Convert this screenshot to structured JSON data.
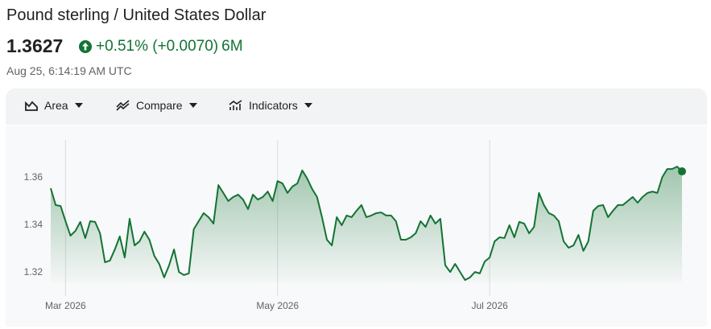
{
  "header": {
    "title": "Pound sterling / United States Dollar",
    "price": "1.3627",
    "change": "+0.51% (+0.0070)",
    "period": "6M",
    "timestamp": "Aug 25, 6:14:19 AM UTC"
  },
  "toolbar": {
    "items": [
      "Area",
      "Compare",
      "Indicators"
    ]
  },
  "chart_data": {
    "type": "area",
    "color": "#137333",
    "categories": [
      null,
      null,
      null,
      "Mar 2026",
      null,
      null,
      null,
      null,
      null,
      null,
      null,
      null,
      null,
      null,
      null,
      null,
      null,
      null,
      null,
      null,
      null,
      null,
      null,
      null,
      null,
      null,
      null,
      null,
      null,
      null,
      null,
      null,
      null,
      null,
      null,
      null,
      null,
      null,
      null,
      null,
      null,
      null,
      null,
      null,
      null,
      null,
      "May 2026",
      null,
      null,
      null,
      null,
      null,
      null,
      null,
      null,
      null,
      null,
      null,
      null,
      null,
      null,
      null,
      null,
      null,
      null,
      null,
      null,
      null,
      null,
      null,
      null,
      null,
      null,
      null,
      null,
      null,
      null,
      null,
      null,
      null,
      null,
      null,
      null,
      null,
      null,
      null,
      null,
      null,
      null,
      "Jul 2026",
      null,
      null,
      null,
      null,
      null,
      null,
      null,
      null,
      null,
      null,
      null,
      null,
      null,
      null,
      null,
      null,
      null,
      null,
      null,
      null,
      null,
      null,
      null,
      null,
      null,
      null,
      null,
      null,
      null,
      null,
      null,
      null,
      null,
      null,
      null,
      null,
      null,
      null,
      null
    ],
    "values": [
      1.3556,
      1.3485,
      1.3481,
      1.3417,
      1.3356,
      1.3376,
      1.3414,
      1.3346,
      1.3417,
      1.3414,
      1.3366,
      1.3244,
      1.3251,
      1.3298,
      1.3353,
      1.3264,
      1.3427,
      1.3315,
      1.3332,
      1.3373,
      1.3339,
      1.3271,
      1.3237,
      1.318,
      1.3231,
      1.3298,
      1.3203,
      1.319,
      1.3197,
      1.3383,
      1.3417,
      1.3451,
      1.3434,
      1.3407,
      1.3569,
      1.3536,
      1.3502,
      1.3519,
      1.3529,
      1.3508,
      1.3468,
      1.3529,
      1.3508,
      1.3519,
      1.3542,
      1.3502,
      1.3586,
      1.3576,
      1.3536,
      1.3563,
      1.3576,
      1.3631,
      1.3597,
      1.3553,
      1.3519,
      1.3434,
      1.3339,
      1.3315,
      1.3434,
      1.34,
      1.3441,
      1.3434,
      1.3461,
      1.3485,
      1.3434,
      1.3441,
      1.3451,
      1.3454,
      1.3441,
      1.3441,
      1.3417,
      1.3339,
      1.3339,
      1.3349,
      1.3366,
      1.3417,
      1.3393,
      1.3441,
      1.3407,
      1.3427,
      1.3231,
      1.3203,
      1.3237,
      1.3203,
      1.3169,
      1.318,
      1.3203,
      1.3197,
      1.3247,
      1.3264,
      1.3332,
      1.3349,
      1.3346,
      1.34,
      1.3349,
      1.3414,
      1.3407,
      1.3366,
      1.3393,
      1.3536,
      1.3485,
      1.3451,
      1.3441,
      1.3417,
      1.3332,
      1.3305,
      1.3315,
      1.3359,
      1.3292,
      1.3332,
      1.3461,
      1.3481,
      1.3485,
      1.3434,
      1.3461,
      1.3485,
      1.3485,
      1.3502,
      1.3519,
      1.3495,
      1.3519,
      1.3536,
      1.3542,
      1.3536,
      1.3603,
      1.3637,
      1.3637,
      1.3647,
      1.3627
    ],
    "ylim": [
      1.316,
      1.376
    ],
    "yticks": [
      1.32,
      1.34,
      1.36
    ],
    "grid": true
  }
}
